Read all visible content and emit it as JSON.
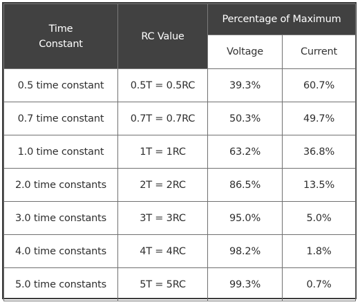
{
  "header": {
    "time_constant_line1": "Time",
    "time_constant_line2": "Constant",
    "rc_value": "RC Value",
    "percentage_of_maximum": "Percentage of Maximum",
    "voltage": "Voltage",
    "current": "Current"
  },
  "rows": [
    {
      "time_constant": "0.5 time constant",
      "rc_value": "0.5T = 0.5RC",
      "voltage": "39.3%",
      "current": "60.7%"
    },
    {
      "time_constant": "0.7 time constant",
      "rc_value": "0.7T = 0.7RC",
      "voltage": "50.3%",
      "current": "49.7%"
    },
    {
      "time_constant": "1.0 time constant",
      "rc_value": "1T = 1RC",
      "voltage": "63.2%",
      "current": "36.8%"
    },
    {
      "time_constant": "2.0 time constants",
      "rc_value": "2T = 2RC",
      "voltage": "86.5%",
      "current": "13.5%"
    },
    {
      "time_constant": "3.0 time constants",
      "rc_value": "3T = 3RC",
      "voltage": "95.0%",
      "current": "5.0%"
    },
    {
      "time_constant": "4.0 time constants",
      "rc_value": "4T = 4RC",
      "voltage": "98.2%",
      "current": "1.8%"
    },
    {
      "time_constant": "5.0 time constants",
      "rc_value": "5T = 5RC",
      "voltage": "99.3%",
      "current": "0.7%"
    }
  ],
  "colors": {
    "header_background": "#414141",
    "header_text": "#ffffff",
    "cell_border": "#6f6f6f"
  }
}
